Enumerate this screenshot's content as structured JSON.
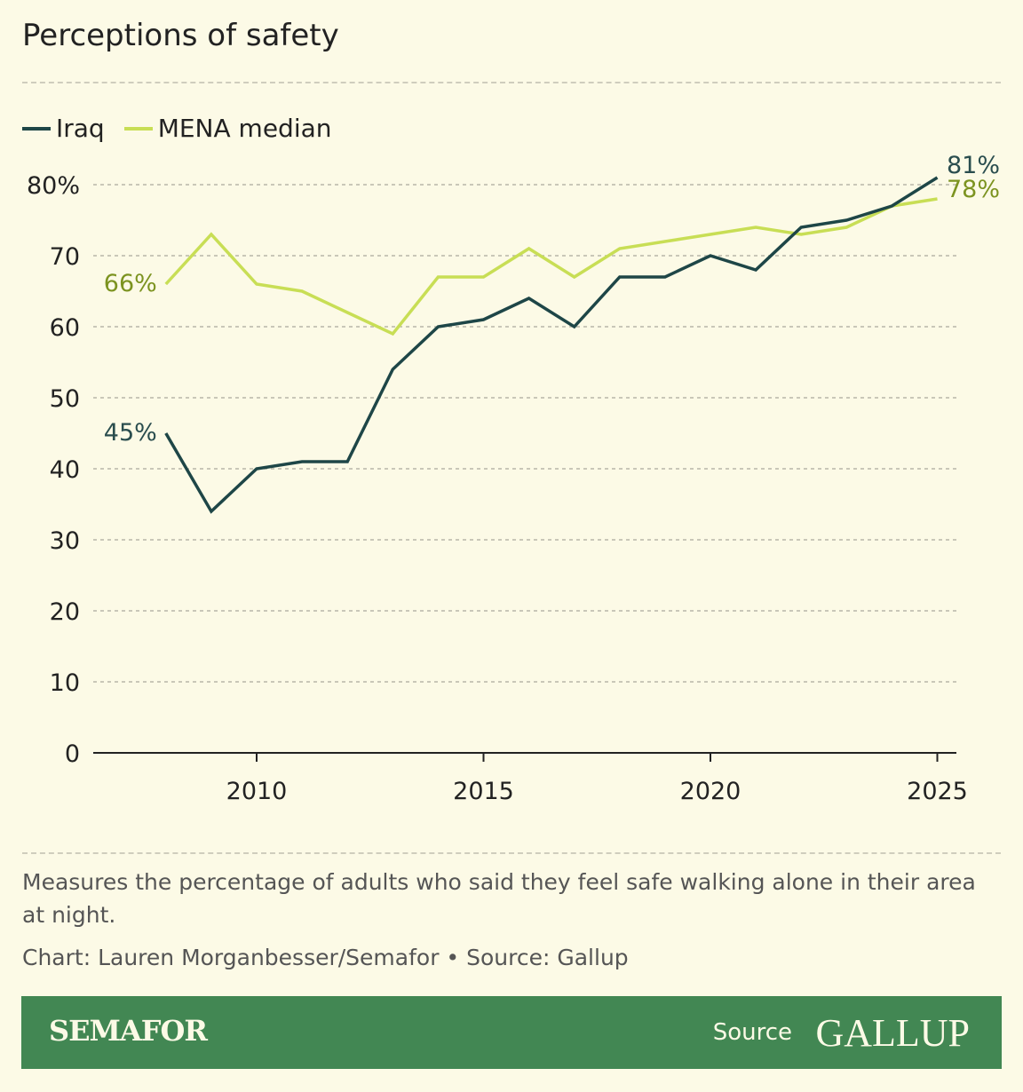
{
  "title": "Perceptions of safety",
  "note": "Measures the percentage of adults who said they feel safe walking alone in their area at night.",
  "credit": "Chart: Lauren Morganbesser/Semafor • Source: Gallup",
  "footer": {
    "brand": "SEMAFOR",
    "source_label": "Source",
    "source_logo": "GALLUP",
    "background": "#428753"
  },
  "chart_data": {
    "type": "line",
    "title": "Perceptions of safety",
    "x": [
      2008,
      2009,
      2010,
      2011,
      2012,
      2013,
      2014,
      2015,
      2016,
      2017,
      2018,
      2019,
      2020,
      2021,
      2022,
      2023,
      2024,
      2025
    ],
    "series": [
      {
        "name": "Iraq",
        "color": "#1e4647",
        "label_color": "#2a4d4e",
        "values": [
          45,
          34,
          40,
          41,
          41,
          54,
          60,
          61,
          64,
          60,
          67,
          67,
          70,
          68,
          74,
          75,
          77,
          81
        ],
        "start_label": "45%",
        "end_label": "81%"
      },
      {
        "name": "MENA median",
        "color": "#c8de55",
        "label_color": "#7c9320",
        "values": [
          66,
          73,
          66,
          65,
          62,
          59,
          67,
          67,
          71,
          67,
          71,
          72,
          73,
          74,
          73,
          74,
          77,
          78
        ],
        "start_label": "66%",
        "end_label": "78%"
      }
    ],
    "xticks": [
      2010,
      2015,
      2020,
      2025
    ],
    "xtick_labels": [
      "2010",
      "2015",
      "2020",
      "2025"
    ],
    "yticks": [
      0,
      10,
      20,
      30,
      40,
      50,
      60,
      70,
      80
    ],
    "ytick_labels": [
      "0",
      "10",
      "20",
      "30",
      "40",
      "50",
      "60",
      "70",
      "80%"
    ],
    "ylim": [
      0,
      80
    ],
    "xlim": [
      2008,
      2025
    ],
    "grid": true,
    "legend": "top-left"
  }
}
